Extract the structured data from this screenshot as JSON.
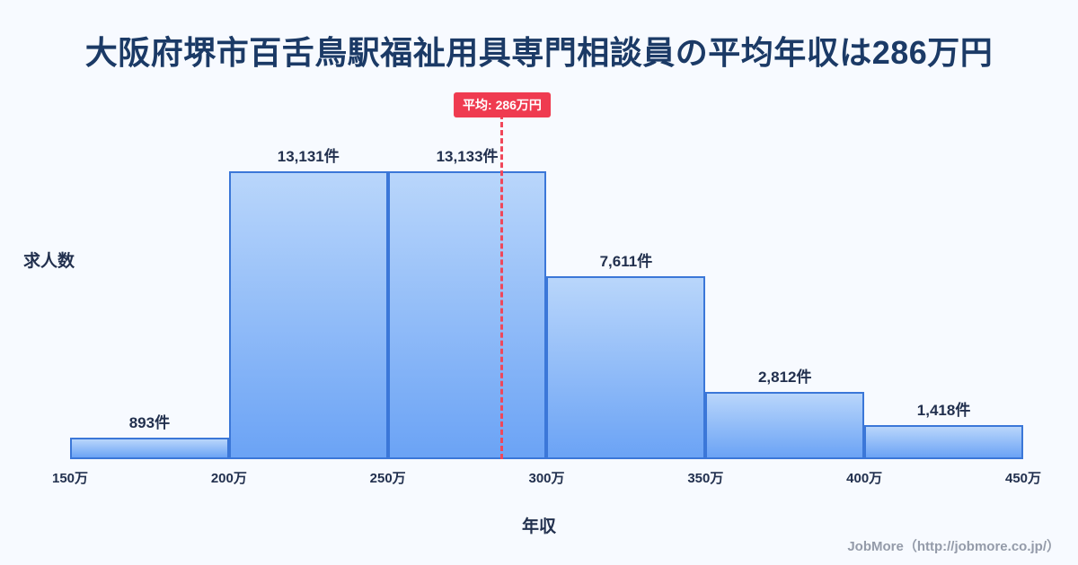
{
  "title": "大阪府堺市百舌鳥駅福祉用具専門相談員の平均年収は286万円",
  "chart_data": {
    "type": "bar",
    "title": "大阪府堺市百舌鳥駅福祉用具専門相談員の平均年収は286万円",
    "xlabel": "年収",
    "ylabel": "求人数",
    "x_ticks": [
      "150万",
      "200万",
      "250万",
      "300万",
      "350万",
      "400万",
      "450万"
    ],
    "x_range": [
      150,
      450
    ],
    "ylim": [
      0,
      13133
    ],
    "grid": false,
    "legend": "none",
    "bins": [
      {
        "range": "150万-200万",
        "value": 893,
        "label": "893件"
      },
      {
        "range": "200万-250万",
        "value": 13131,
        "label": "13,131件"
      },
      {
        "range": "250万-300万",
        "value": 13133,
        "label": "13,133件"
      },
      {
        "range": "300万-350万",
        "value": 7611,
        "label": "7,611件"
      },
      {
        "range": "350万-400万",
        "value": 2812,
        "label": "2,812件"
      },
      {
        "range": "400万-450万",
        "value": 1418,
        "label": "1,418件"
      }
    ],
    "average": {
      "value": 286,
      "label": "平均: 286万円",
      "x_min": 150,
      "x_max": 450
    },
    "colors": {
      "background": "#f7faff",
      "title_text": "#1b3a66",
      "axis_text": "#22304e",
      "bar_fill_top": "#b9d6fb",
      "bar_fill_bottom": "#6ba3f5",
      "bar_border": "#3b77d8",
      "average_line": "#f0475a",
      "badge_bg": "#ef3b50",
      "badge_text": "#ffffff"
    }
  },
  "footer": {
    "credit": "JobMore（http://jobmore.co.jp/）"
  }
}
